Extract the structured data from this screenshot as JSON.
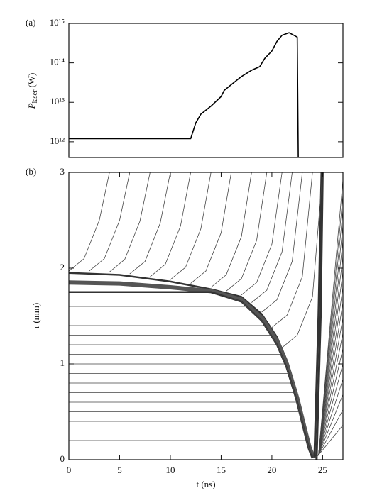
{
  "chart_data": [
    {
      "type": "line",
      "panel_label": "(a)",
      "ylabel": "P",
      "ylabel_sub": "laser",
      "ylabel_unit": "(W)",
      "log_y": true,
      "xlim": [
        0,
        27
      ],
      "ylim": [
        400000000000.0,
        1000000000000000.0
      ],
      "yticks": [
        {
          "value": 1000000000000.0,
          "label": "10¹²"
        },
        {
          "value": 10000000000000.0,
          "label": "10¹³"
        },
        {
          "value": 100000000000000.0,
          "label": "10¹⁴"
        },
        {
          "value": 1000000000000000.0,
          "label": "10¹⁵"
        }
      ],
      "series": [
        {
          "color": "#000000",
          "width": 1.6,
          "x": [
            0,
            12,
            12.5,
            13,
            14,
            15,
            15.3,
            16,
            17,
            18,
            18.8,
            19.3,
            20,
            20.5,
            21,
            21.7,
            22.5,
            22.6
          ],
          "values": [
            1200000000000.0,
            1200000000000.0,
            3000000000000.0,
            5000000000000.0,
            8000000000000.0,
            14000000000000.0,
            20000000000000.0,
            28000000000000.0,
            45000000000000.0,
            65000000000000.0,
            80000000000000.0,
            130000000000000.0,
            200000000000000.0,
            350000000000000.0,
            500000000000000.0,
            580000000000000.0,
            450000000000000.0,
            400000000000.0
          ]
        }
      ]
    },
    {
      "type": "line",
      "panel_label": "(b)",
      "xlabel": "t (ns)",
      "ylabel": "r (mm)",
      "log_y": false,
      "xlim": [
        0,
        27
      ],
      "ylim": [
        0,
        3
      ],
      "xticks": [
        0,
        5,
        10,
        15,
        20,
        25
      ],
      "yticks": [
        0,
        1,
        2,
        3
      ],
      "series": [
        {
          "color": "#333333",
          "width": 2.5,
          "x": [
            0,
            5,
            10,
            14,
            17,
            19,
            20.5,
            21.5,
            22.5,
            23.2,
            23.7,
            24.2
          ],
          "values": [
            1.95,
            1.93,
            1.86,
            1.78,
            1.7,
            1.52,
            1.28,
            1.03,
            0.68,
            0.38,
            0.16,
            0.02
          ]
        },
        {
          "color": "#555555",
          "width": 6,
          "x": [
            0,
            5,
            10,
            14,
            17,
            19,
            20.5,
            21.5,
            22.5,
            23.2,
            23.7,
            24.1
          ],
          "values": [
            1.85,
            1.84,
            1.8,
            1.76,
            1.67,
            1.48,
            1.24,
            0.99,
            0.64,
            0.34,
            0.13,
            0.02
          ]
        },
        {
          "color": "#333333",
          "width": 2.5,
          "x": [
            0,
            14,
            17,
            19,
            20.5,
            21.5,
            22.5,
            23.2,
            23.7,
            24
          ],
          "values": [
            1.75,
            1.75,
            1.65,
            1.45,
            1.2,
            0.95,
            0.6,
            0.3,
            0.1,
            0.02
          ]
        },
        {
          "color": "#333333",
          "width": 3,
          "x": [
            24.2,
            24.6,
            24.9
          ],
          "values": [
            0.02,
            1.5,
            3
          ]
        },
        {
          "color": "#333333",
          "width": 3,
          "x": [
            24.4,
            24.8,
            25.0
          ],
          "values": [
            0,
            1.5,
            3
          ]
        },
        {
          "color": "#444444",
          "width": 0.8,
          "x": [
            0,
            15.5,
            17,
            19,
            20.5,
            21.5,
            22.5,
            23.2,
            23.7,
            24.2,
            24.6,
            27
          ],
          "values": [
            1.7,
            1.7,
            1.65,
            1.45,
            1.2,
            0.95,
            0.6,
            0.3,
            0.1,
            0.02,
            0.05,
            2.92
          ]
        },
        {
          "color": "#444444",
          "width": 0.8,
          "x": [
            0,
            17.5,
            19,
            20.5,
            21.5,
            22.5,
            23.2,
            23.7,
            24.2,
            24.6,
            27
          ],
          "values": [
            1.6,
            1.6,
            1.45,
            1.2,
            0.95,
            0.6,
            0.3,
            0.1,
            0.02,
            0.05,
            2.76
          ]
        },
        {
          "color": "#444444",
          "width": 0.8,
          "x": [
            0,
            18.5,
            19,
            20.5,
            21.5,
            22.5,
            23.2,
            23.7,
            24.2,
            24.6,
            27
          ],
          "values": [
            1.5,
            1.5,
            1.45,
            1.2,
            0.95,
            0.6,
            0.3,
            0.1,
            0.02,
            0.05,
            2.6
          ]
        },
        {
          "color": "#444444",
          "width": 0.8,
          "x": [
            0,
            19.3,
            20.5,
            21.5,
            22.5,
            23.2,
            23.7,
            24.2,
            24.6,
            27
          ],
          "values": [
            1.4,
            1.4,
            1.2,
            0.95,
            0.6,
            0.3,
            0.1,
            0.02,
            0.05,
            2.44
          ]
        },
        {
          "color": "#444444",
          "width": 0.8,
          "x": [
            0,
            19.9,
            20.5,
            21.5,
            22.5,
            23.2,
            23.7,
            24.2,
            24.6,
            27
          ],
          "values": [
            1.3,
            1.3,
            1.2,
            0.95,
            0.6,
            0.3,
            0.1,
            0.02,
            0.05,
            2.28
          ]
        },
        {
          "color": "#444444",
          "width": 0.8,
          "x": [
            0,
            20.5,
            21.5,
            22.5,
            23.2,
            23.7,
            24.2,
            24.6,
            27
          ],
          "values": [
            1.2,
            1.2,
            0.95,
            0.6,
            0.3,
            0.1,
            0.02,
            0.05,
            2.12
          ]
        },
        {
          "color": "#444444",
          "width": 0.8,
          "x": [
            0,
            20.9,
            21.5,
            22.5,
            23.2,
            23.7,
            24.2,
            24.6,
            27
          ],
          "values": [
            1.1,
            1.1,
            0.95,
            0.6,
            0.3,
            0.1,
            0.02,
            0.05,
            1.96
          ]
        },
        {
          "color": "#444444",
          "width": 0.8,
          "x": [
            0,
            21.3,
            21.5,
            22.5,
            23.2,
            23.7,
            24.2,
            24.6,
            27
          ],
          "values": [
            1.0,
            1.0,
            0.95,
            0.6,
            0.3,
            0.1,
            0.02,
            0.05,
            1.8
          ]
        },
        {
          "color": "#444444",
          "width": 0.8,
          "x": [
            0,
            21.65,
            22.5,
            23.2,
            23.7,
            24.2,
            24.6,
            27
          ],
          "values": [
            0.9,
            0.9,
            0.6,
            0.3,
            0.1,
            0.02,
            0.05,
            1.64
          ]
        },
        {
          "color": "#444444",
          "width": 0.8,
          "x": [
            0,
            21.95,
            22.5,
            23.2,
            23.7,
            24.2,
            24.6,
            27
          ],
          "values": [
            0.8,
            0.8,
            0.6,
            0.3,
            0.1,
            0.02,
            0.05,
            1.48
          ]
        },
        {
          "color": "#444444",
          "width": 0.8,
          "x": [
            0,
            22.2,
            22.5,
            23.2,
            23.7,
            24.2,
            24.6,
            27
          ],
          "values": [
            0.7,
            0.7,
            0.6,
            0.3,
            0.1,
            0.02,
            0.05,
            1.32
          ]
        },
        {
          "color": "#444444",
          "width": 0.8,
          "x": [
            0,
            22.5,
            23.2,
            23.7,
            24.2,
            24.6,
            27
          ],
          "values": [
            0.6,
            0.6,
            0.3,
            0.1,
            0.02,
            0.05,
            1.16
          ]
        },
        {
          "color": "#444444",
          "width": 0.8,
          "x": [
            0,
            22.7,
            23.2,
            23.7,
            24.2,
            24.6,
            27
          ],
          "values": [
            0.5,
            0.5,
            0.3,
            0.1,
            0.02,
            0.05,
            1.0
          ]
        },
        {
          "color": "#444444",
          "width": 0.8,
          "x": [
            0,
            22.95,
            23.2,
            23.7,
            24.2,
            24.6,
            27
          ],
          "values": [
            0.4,
            0.4,
            0.3,
            0.1,
            0.02,
            0.05,
            0.84
          ]
        },
        {
          "color": "#444444",
          "width": 0.8,
          "x": [
            0,
            23.2,
            23.7,
            24.2,
            24.6,
            27
          ],
          "values": [
            0.3,
            0.3,
            0.1,
            0.02,
            0.05,
            0.68
          ]
        },
        {
          "color": "#444444",
          "width": 0.8,
          "x": [
            0,
            23.45,
            23.7,
            24.2,
            24.6,
            27
          ],
          "values": [
            0.2,
            0.2,
            0.1,
            0.02,
            0.05,
            0.52
          ]
        },
        {
          "color": "#444444",
          "width": 0.8,
          "x": [
            0,
            23.7,
            24.2,
            24.6,
            27
          ],
          "values": [
            0.1,
            0.1,
            0.02,
            0.05,
            0.36
          ]
        },
        {
          "color": "#444444",
          "width": 0.8,
          "x": [
            0,
            1.5,
            3,
            4
          ],
          "values": [
            1.97,
            2.1,
            2.5,
            3
          ]
        },
        {
          "color": "#444444",
          "width": 0.8,
          "x": [
            2,
            3.5,
            5,
            6
          ],
          "values": [
            1.97,
            2.1,
            2.5,
            3
          ]
        },
        {
          "color": "#444444",
          "width": 0.8,
          "x": [
            4,
            5.5,
            7,
            8
          ],
          "values": [
            1.96,
            2.09,
            2.49,
            3
          ]
        },
        {
          "color": "#444444",
          "width": 0.8,
          "x": [
            6,
            7.5,
            9,
            10
          ],
          "values": [
            1.94,
            2.07,
            2.47,
            3
          ]
        },
        {
          "color": "#444444",
          "width": 0.8,
          "x": [
            8,
            9.5,
            11,
            12
          ],
          "values": [
            1.91,
            2.04,
            2.44,
            3
          ]
        },
        {
          "color": "#444444",
          "width": 0.8,
          "x": [
            10,
            11.5,
            13,
            14
          ],
          "values": [
            1.88,
            2.01,
            2.41,
            3
          ]
        },
        {
          "color": "#444444",
          "width": 0.8,
          "x": [
            12,
            13.5,
            15,
            16
          ],
          "values": [
            1.84,
            1.97,
            2.37,
            3
          ]
        },
        {
          "color": "#444444",
          "width": 0.8,
          "x": [
            14,
            15.5,
            17,
            18
          ],
          "values": [
            1.8,
            1.93,
            2.33,
            3
          ]
        },
        {
          "color": "#444444",
          "width": 0.8,
          "x": [
            15.5,
            17,
            18.5,
            19.5
          ],
          "values": [
            1.76,
            1.89,
            2.29,
            3
          ]
        },
        {
          "color": "#444444",
          "width": 0.8,
          "x": [
            17,
            18.5,
            20,
            21
          ],
          "values": [
            1.72,
            1.85,
            2.25,
            3
          ]
        },
        {
          "color": "#444444",
          "width": 0.8,
          "x": [
            18,
            19.5,
            21,
            22
          ],
          "values": [
            1.64,
            1.77,
            2.17,
            3
          ]
        },
        {
          "color": "#444444",
          "width": 0.8,
          "x": [
            19,
            20.5,
            22,
            23
          ],
          "values": [
            1.54,
            1.67,
            2.07,
            3
          ]
        },
        {
          "color": "#444444",
          "width": 0.8,
          "x": [
            20,
            21.5,
            23,
            24
          ],
          "values": [
            1.38,
            1.51,
            1.91,
            3
          ]
        },
        {
          "color": "#444444",
          "width": 0.8,
          "x": [
            21,
            22.5,
            24,
            25
          ],
          "values": [
            1.17,
            1.3,
            1.7,
            3
          ]
        }
      ]
    }
  ]
}
